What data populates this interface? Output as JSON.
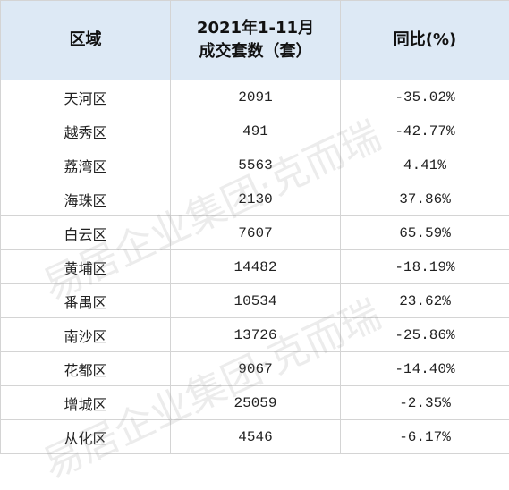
{
  "table": {
    "header": [
      "区域",
      [
        "2021年1-11月",
        "成交套数（套）"
      ],
      "同比(%)"
    ],
    "rows": [
      [
        "天河区",
        "2091",
        "-35.02%"
      ],
      [
        "越秀区",
        "491",
        "-42.77%"
      ],
      [
        "荔湾区",
        "5563",
        "4.41%"
      ],
      [
        "海珠区",
        "2130",
        "37.86%"
      ],
      [
        "白云区",
        "7607",
        "65.59%"
      ],
      [
        "黄埔区",
        "14482",
        "-18.19%"
      ],
      [
        "番禺区",
        "10534",
        "23.62%"
      ],
      [
        "南沙区",
        "13726",
        "-25.86%"
      ],
      [
        "花都区",
        "9067",
        "-14.40%"
      ],
      [
        "增城区",
        "25059",
        "-2.35%"
      ],
      [
        "从化区",
        "4546",
        "-6.17%"
      ]
    ]
  },
  "watermark": "易居企业集团·克而瑞"
}
